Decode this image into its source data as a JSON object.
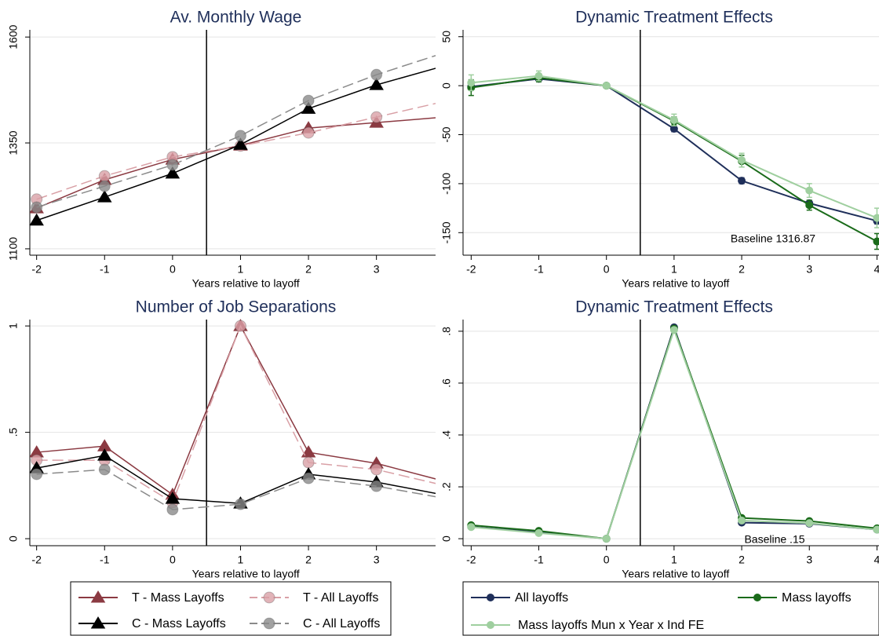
{
  "chart_data": [
    {
      "type": "line",
      "title": "Av. Monthly Wage",
      "x_label": "Years relative to layoff",
      "x": [
        -2,
        -1,
        0,
        1,
        2,
        3,
        4
      ],
      "xlim": [
        -2.1,
        3.87
      ],
      "xticks": [
        -2,
        -1,
        0,
        1,
        2,
        3
      ],
      "ylim": [
        1085,
        1617
      ],
      "yticks": [
        1100,
        1350,
        1600
      ],
      "grid": true,
      "vline": 0.5,
      "series": [
        {
          "color": "#8b3a42",
          "marker": "triangle",
          "dashed": false,
          "values": [
            1196,
            1263,
            1311,
            1344,
            1385,
            1398,
            1411
          ]
        },
        {
          "color": "#d9a0a6",
          "marker": "circle",
          "dashed": true,
          "values": [
            1217,
            1272,
            1317,
            1343,
            1374,
            1411,
            1448
          ]
        },
        {
          "color": "#000000",
          "marker": "triangle",
          "dashed": false,
          "values": [
            1167,
            1222,
            1278,
            1346,
            1431,
            1487,
            1532
          ]
        },
        {
          "color": "#8a8a8a",
          "marker": "circle",
          "dashed": true,
          "values": [
            1198,
            1248,
            1298,
            1367,
            1450,
            1511,
            1563
          ]
        }
      ]
    },
    {
      "type": "line",
      "title": "Dynamic Treatment Effects",
      "x_label": "Years relative to layoff",
      "x": [
        -2,
        -1,
        0,
        1,
        2,
        3,
        4
      ],
      "xlim": [
        -2.12,
        4.03
      ],
      "xticks": [
        -2,
        -1,
        0,
        1,
        2,
        3,
        4
      ],
      "ylim": [
        -173,
        57
      ],
      "yticks": [
        -150,
        -100,
        -50,
        0,
        50
      ],
      "grid": true,
      "vline": 0.5,
      "annotation": "Baseline 1316.87",
      "series": [
        {
          "color": "#1f2f5a",
          "marker": "circle",
          "dashed": false,
          "values": [
            -1,
            7,
            0,
            -44,
            -97,
            -120,
            -138
          ],
          "errors": [
            3,
            3,
            0,
            3,
            3,
            3,
            3
          ]
        },
        {
          "color": "#1a6b1a",
          "marker": "circle",
          "dashed": false,
          "values": [
            -2,
            8,
            0,
            -36,
            -77,
            -122,
            -159
          ],
          "errors": [
            8,
            4,
            0,
            4,
            6,
            5,
            8
          ]
        },
        {
          "color": "#9fcf9f",
          "marker": "circle",
          "dashed": false,
          "values": [
            3,
            10,
            0,
            -35,
            -76,
            -107,
            -135
          ],
          "errors": [
            8,
            5,
            0,
            6,
            7,
            7,
            10
          ]
        }
      ]
    },
    {
      "type": "line",
      "title": "Number of Job Separations",
      "x_label": "Years relative to layoff",
      "x": [
        -2,
        -1,
        0,
        1,
        2,
        3,
        4
      ],
      "xlim": [
        -2.1,
        3.87
      ],
      "xticks": [
        -2,
        -1,
        0,
        1,
        2,
        3
      ],
      "ylim": [
        -0.033,
        1.03
      ],
      "yticks": [
        0,
        {
          "value": 0.5,
          "label": ".5"
        },
        1
      ],
      "grid": true,
      "vline": 0.5,
      "legend": "bottom",
      "series": [
        {
          "name": "T - Mass Layoffs",
          "color": "#8b3a42",
          "marker": "triangle",
          "dashed": false,
          "values": [
            0.406,
            0.435,
            0.207,
            1.0,
            0.406,
            0.354,
            0.27
          ]
        },
        {
          "name": "T - All Layoffs",
          "color": "#d9a0a6",
          "marker": "circle",
          "dashed": true,
          "values": [
            0.369,
            0.369,
            0.17,
            1.0,
            0.358,
            0.325,
            0.25
          ]
        },
        {
          "name": "C - Mass Layoffs",
          "color": "#000000",
          "marker": "triangle",
          "dashed": false,
          "values": [
            0.332,
            0.391,
            0.188,
            0.166,
            0.303,
            0.266,
            0.205
          ]
        },
        {
          "name": "C - All Layoffs",
          "color": "#8a8a8a",
          "marker": "circle",
          "dashed": true,
          "values": [
            0.303,
            0.325,
            0.137,
            0.162,
            0.284,
            0.247,
            0.19
          ]
        }
      ]
    },
    {
      "type": "line",
      "title": "Dynamic Treatment Effects",
      "x_label": "Years relative to layoff",
      "x": [
        -2,
        -1,
        0,
        1,
        2,
        3,
        4
      ],
      "xlim": [
        -2.12,
        4.03
      ],
      "xticks": [
        -2,
        -1,
        0,
        1,
        2,
        3,
        4
      ],
      "ylim": [
        -0.027,
        0.845
      ],
      "yticks": [
        0,
        {
          "value": 0.2,
          "label": ".2"
        },
        {
          "value": 0.4,
          "label": ".4"
        },
        {
          "value": 0.6,
          "label": ".6"
        },
        {
          "value": 0.8,
          "label": ".8"
        }
      ],
      "grid": true,
      "vline": 0.5,
      "annotation": "Baseline .15",
      "legend": "bottom",
      "series": [
        {
          "name": "All layoffs",
          "color": "#1f2f5a",
          "marker": "circle",
          "dashed": false,
          "values": [
            0.046,
            0.025,
            0,
            0.815,
            0.062,
            0.058,
            0.035
          ]
        },
        {
          "name": "Mass layoffs",
          "color": "#1a6b1a",
          "marker": "circle",
          "dashed": false,
          "values": [
            0.052,
            0.03,
            0,
            0.81,
            0.08,
            0.068,
            0.04
          ]
        },
        {
          "name": "Mass layoffs Mun x Year x Ind FE",
          "color": "#9fcf9f",
          "marker": "circle",
          "dashed": false,
          "values": [
            0.045,
            0.022,
            0,
            0.805,
            0.07,
            0.06,
            0.035
          ]
        }
      ]
    }
  ]
}
